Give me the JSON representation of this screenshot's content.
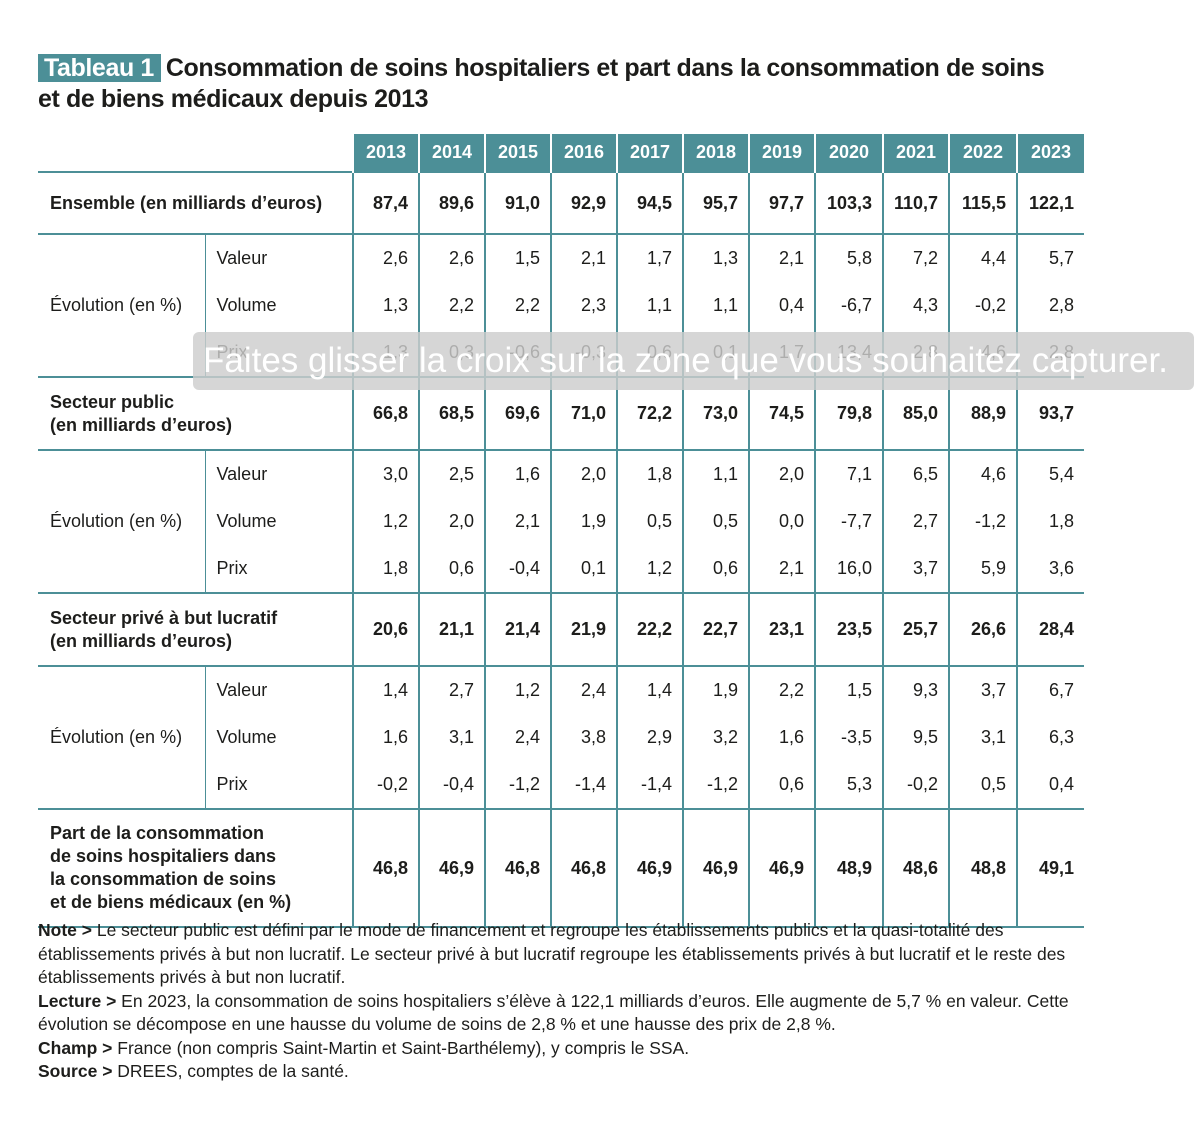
{
  "title": {
    "tag": "Tableau 1",
    "line1": "Consommation de soins hospitaliers et part dans la consommation de soins",
    "line2": "et de biens médicaux depuis 2013"
  },
  "years": [
    "2013",
    "2014",
    "2015",
    "2016",
    "2017",
    "2018",
    "2019",
    "2020",
    "2021",
    "2022",
    "2023"
  ],
  "ensemble": {
    "label": "Ensemble (en milliards d’euros)",
    "values": [
      "87,4",
      "89,6",
      "91,0",
      "92,9",
      "94,5",
      "95,7",
      "97,7",
      "103,3",
      "110,7",
      "115,5",
      "122,1"
    ],
    "evo_label": "Évolution (en %)",
    "sub": [
      {
        "label": "Valeur",
        "values": [
          "2,6",
          "2,6",
          "1,5",
          "2,1",
          "1,7",
          "1,3",
          "2,1",
          "5,8",
          "7,2",
          "4,4",
          "5,7"
        ]
      },
      {
        "label": "Volume",
        "values": [
          "1,3",
          "2,2",
          "2,2",
          "2,3",
          "1,1",
          "1,1",
          "0,4",
          "-6,7",
          "4,3",
          "-0,2",
          "2,8"
        ]
      },
      {
        "label": "Prix",
        "values": [
          "1,3",
          "0,3",
          "-0,6",
          "-0,3",
          "0,6",
          "0,1",
          "1,7",
          "13,4",
          "2,8",
          "4,6",
          "2,8"
        ]
      }
    ]
  },
  "public": {
    "label_line1": "Secteur public",
    "label_line2": "(en milliards d’euros)",
    "values": [
      "66,8",
      "68,5",
      "69,6",
      "71,0",
      "72,2",
      "73,0",
      "74,5",
      "79,8",
      "85,0",
      "88,9",
      "93,7"
    ],
    "evo_label": "Évolution (en %)",
    "sub": [
      {
        "label": "Valeur",
        "values": [
          "3,0",
          "2,5",
          "1,6",
          "2,0",
          "1,8",
          "1,1",
          "2,0",
          "7,1",
          "6,5",
          "4,6",
          "5,4"
        ]
      },
      {
        "label": "Volume",
        "values": [
          "1,2",
          "2,0",
          "2,1",
          "1,9",
          "0,5",
          "0,5",
          "0,0",
          "-7,7",
          "2,7",
          "-1,2",
          "1,8"
        ]
      },
      {
        "label": "Prix",
        "values": [
          "1,8",
          "0,6",
          "-0,4",
          "0,1",
          "1,2",
          "0,6",
          "2,1",
          "16,0",
          "3,7",
          "5,9",
          "3,6"
        ]
      }
    ]
  },
  "prive": {
    "label_line1": "Secteur privé à but lucratif",
    "label_line2": "(en milliards d’euros)",
    "values": [
      "20,6",
      "21,1",
      "21,4",
      "21,9",
      "22,2",
      "22,7",
      "23,1",
      "23,5",
      "25,7",
      "26,6",
      "28,4"
    ],
    "evo_label": "Évolution (en %)",
    "sub": [
      {
        "label": "Valeur",
        "values": [
          "1,4",
          "2,7",
          "1,2",
          "2,4",
          "1,4",
          "1,9",
          "2,2",
          "1,5",
          "9,3",
          "3,7",
          "6,7"
        ]
      },
      {
        "label": "Volume",
        "values": [
          "1,6",
          "3,1",
          "2,4",
          "3,8",
          "2,9",
          "3,2",
          "1,6",
          "-3,5",
          "9,5",
          "3,1",
          "6,3"
        ]
      },
      {
        "label": "Prix",
        "values": [
          "-0,2",
          "-0,4",
          "-1,2",
          "-1,4",
          "-1,4",
          "-1,2",
          "0,6",
          "5,3",
          "-0,2",
          "0,5",
          "0,4"
        ]
      }
    ]
  },
  "part": {
    "label_lines": [
      "Part de la consommation",
      "de soins hospitaliers dans",
      "la consommation de soins",
      "et de biens médicaux (en %)"
    ],
    "values": [
      "46,8",
      "46,9",
      "46,8",
      "46,8",
      "46,9",
      "46,9",
      "46,9",
      "48,9",
      "48,6",
      "48,8",
      "49,1"
    ]
  },
  "notes": [
    {
      "key": "Note >",
      "text": " Le secteur public est défini par le mode de financement et regroupe les établissements publics et la quasi-totalité des établissements privés à but non lucratif. Le secteur privé à but lucratif regroupe les établissements privés à but lucratif et le reste des établissements privés à but non lucratif."
    },
    {
      "key": "Lecture >",
      "text": " En 2023, la consommation de soins hospitaliers s’élève à 122,1 milliards d’euros. Elle augmente de 5,7 % en valeur. Cette évolution se décompose en une hausse du volume de soins de 2,8 % et une hausse des prix de 2,8 %."
    },
    {
      "key": "Champ >",
      "text": " France (non compris Saint-Martin et Saint-Barthélemy), y compris le SSA."
    },
    {
      "key": "Source >",
      "text": " DREES, comptes de la santé."
    }
  ],
  "overlay_text": "Faites glisser la croix sur la zone que vous souhaitez capturer."
}
